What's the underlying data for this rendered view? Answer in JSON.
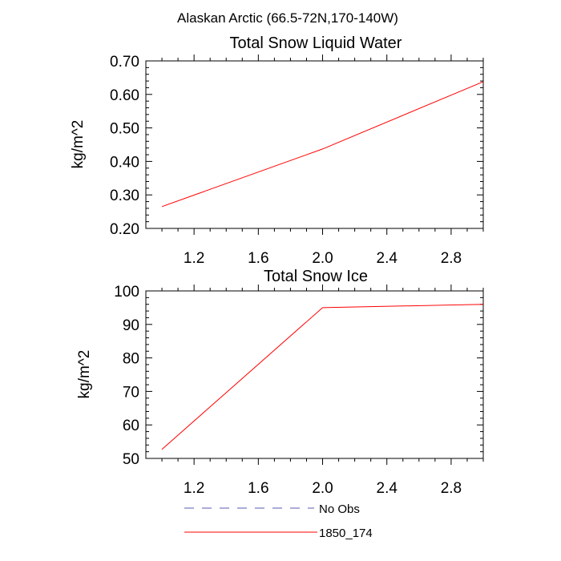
{
  "figure": {
    "suptitle": "Alaskan Arctic (66.5-72N,170-140W)"
  },
  "chart_data": [
    {
      "type": "line",
      "title": "Total Snow Liquid Water",
      "xlabel": "",
      "ylabel": "kg/m^2",
      "xlim": [
        0.9,
        3.0
      ],
      "ylim": [
        0.2,
        0.7
      ],
      "x_ticks": [
        1.2,
        1.6,
        2.0,
        2.4,
        2.8
      ],
      "x_tick_labels": [
        "1.2",
        "1.6",
        "2.0",
        "2.4",
        "2.8"
      ],
      "y_ticks": [
        0.2,
        0.3,
        0.4,
        0.5,
        0.6,
        0.7
      ],
      "y_tick_labels": [
        "0.20",
        "0.30",
        "0.40",
        "0.50",
        "0.60",
        "0.70"
      ],
      "series": [
        {
          "name": "1850_174",
          "color": "#ff0000",
          "x": [
            1.0,
            2.0,
            3.0
          ],
          "y": [
            0.265,
            0.437,
            0.638
          ]
        }
      ]
    },
    {
      "type": "line",
      "title": "Total Snow Ice",
      "xlabel": "",
      "ylabel": "kg/m^2",
      "xlim": [
        0.9,
        3.0
      ],
      "ylim": [
        50,
        100
      ],
      "x_ticks": [
        1.2,
        1.6,
        2.0,
        2.4,
        2.8
      ],
      "x_tick_labels": [
        "1.2",
        "1.6",
        "2.0",
        "2.4",
        "2.8"
      ],
      "y_ticks": [
        50,
        60,
        70,
        80,
        90,
        100
      ],
      "y_tick_labels": [
        "50",
        "60",
        "70",
        "80",
        "90",
        "100"
      ],
      "series": [
        {
          "name": "1850_174",
          "color": "#ff0000",
          "x": [
            1.0,
            2.0,
            3.0
          ],
          "y": [
            52.7,
            95.0,
            96.0
          ]
        }
      ]
    }
  ],
  "legend": {
    "entries": [
      {
        "label": "No Obs",
        "color": "#5a5ab0",
        "style": "dashed"
      },
      {
        "label": "1850_174",
        "color": "#ff0000",
        "style": "solid"
      }
    ]
  }
}
